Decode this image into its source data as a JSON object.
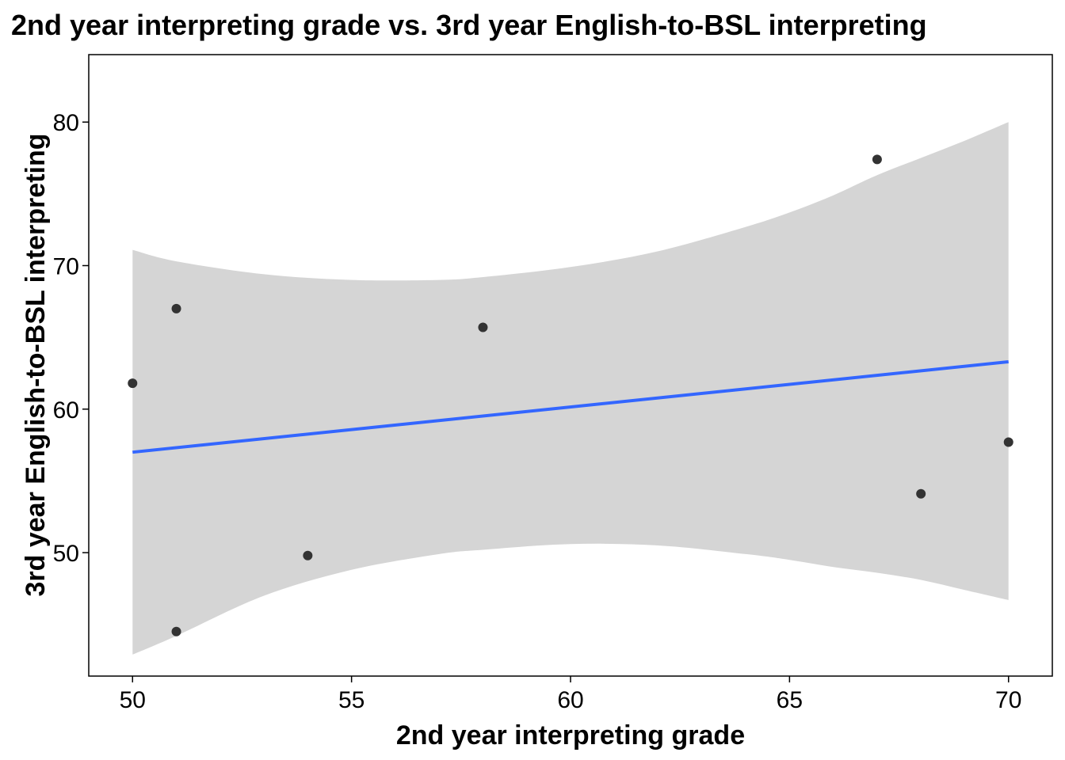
{
  "chart_data": {
    "type": "scatter",
    "title": "2nd year interpreting grade vs. 3rd year English-to-BSL interpreting",
    "xlabel": "2nd year interpreting grade",
    "ylabel": "3rd year English-to-BSL interpreting",
    "xlim": [
      49.0,
      71.0
    ],
    "ylim": [
      41.4,
      84.7
    ],
    "x_ticks": [
      50,
      55,
      60,
      65,
      70
    ],
    "y_ticks": [
      50,
      60,
      70,
      80
    ],
    "grid": false,
    "points": [
      {
        "x": 50,
        "y": 61.8
      },
      {
        "x": 51,
        "y": 67.0
      },
      {
        "x": 51,
        "y": 44.5
      },
      {
        "x": 54,
        "y": 49.8
      },
      {
        "x": 58,
        "y": 65.7
      },
      {
        "x": 67,
        "y": 77.4
      },
      {
        "x": 68,
        "y": 54.1
      },
      {
        "x": 70,
        "y": 57.7
      }
    ],
    "fit_line": {
      "x": [
        50,
        70
      ],
      "y": [
        57.0,
        63.3
      ]
    },
    "confidence_band": {
      "x": [
        50,
        51,
        53,
        55,
        57,
        58,
        60,
        62,
        64,
        65,
        66,
        67,
        68,
        69,
        70
      ],
      "upper": [
        71.1,
        70.3,
        69.4,
        69.0,
        69.0,
        69.2,
        69.9,
        71.0,
        72.7,
        73.7,
        74.9,
        76.3,
        77.5,
        78.7,
        80.0
      ],
      "lower": [
        42.9,
        44.2,
        47.0,
        48.8,
        49.9,
        50.2,
        50.6,
        50.5,
        49.9,
        49.5,
        49.0,
        48.6,
        48.1,
        47.4,
        46.7
      ]
    },
    "colors": {
      "points": "#333333",
      "fit_line": "#3366FF",
      "band": "#D5D5D5",
      "axis": "#000000",
      "background": "#FFFFFF"
    }
  }
}
